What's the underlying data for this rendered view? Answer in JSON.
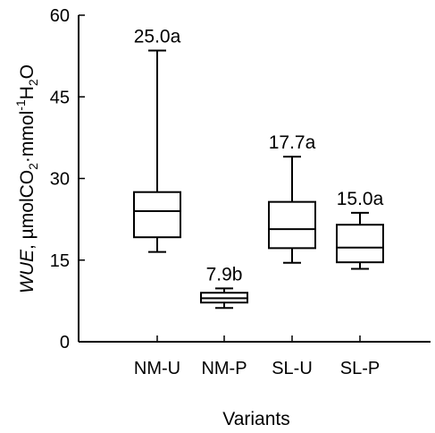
{
  "chart_data": {
    "type": "box",
    "xlabel": "Variants",
    "ylabel": {
      "italic": "WUE",
      "rest": ", µmolCO",
      "sub1": "2",
      "mid": "·mmol",
      "sup": "-1",
      "h": "H",
      "sub2": "2",
      "o": "O"
    },
    "ylim": [
      0,
      60
    ],
    "yticks": [
      "0",
      "15",
      "30",
      "45",
      "60"
    ],
    "categories": [
      "NM-U",
      "NM-P",
      "SL-U",
      "SL-P"
    ],
    "boxes": [
      {
        "category": "NM-U",
        "min": 16.5,
        "q1": 19.2,
        "median": 24.0,
        "q3": 27.5,
        "max": 53.5,
        "label": "25.0a"
      },
      {
        "category": "NM-P",
        "min": 6.2,
        "q1": 7.2,
        "median": 8.0,
        "q3": 9.0,
        "max": 9.8,
        "label": "7.9b"
      },
      {
        "category": "SL-U",
        "min": 14.5,
        "q1": 17.2,
        "median": 20.7,
        "q3": 25.7,
        "max": 34.0,
        "label": "17.7a"
      },
      {
        "category": "SL-P",
        "min": 13.4,
        "q1": 14.6,
        "median": 17.3,
        "q3": 21.5,
        "max": 23.7,
        "label": "15.0a"
      }
    ]
  }
}
